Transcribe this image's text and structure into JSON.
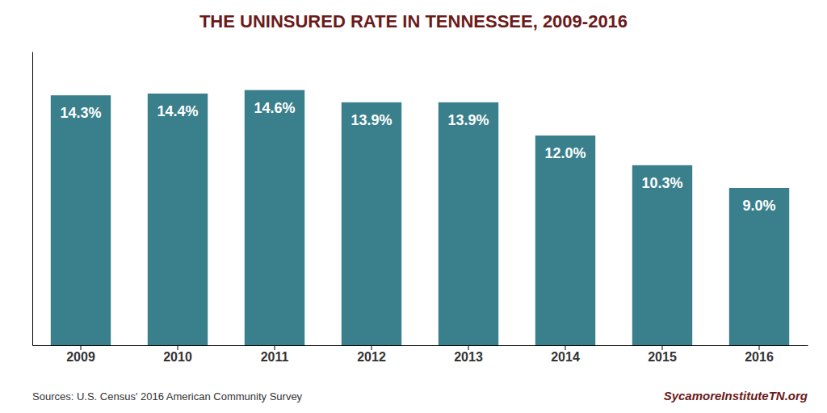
{
  "chart_data": {
    "type": "bar",
    "title": "THE UNINSURED RATE IN TENNESSEE, 2009-2016",
    "categories": [
      "2009",
      "2010",
      "2011",
      "2012",
      "2013",
      "2014",
      "2015",
      "2016"
    ],
    "values": [
      14.3,
      14.4,
      14.6,
      13.9,
      13.9,
      12.0,
      10.3,
      9.0
    ],
    "value_labels": [
      "14.3%",
      "14.4%",
      "14.6%",
      "13.9%",
      "13.9%",
      "12.0%",
      "10.3%",
      "9.0%"
    ],
    "data_labels": true,
    "color": "#3a7f8c",
    "ylim": [
      0,
      16.8
    ],
    "tick_labels": "x",
    "annotations": [
      "Sources: U.S. Census' 2016 American Community Survey",
      "SycamoreInstituteTN.org"
    ]
  }
}
